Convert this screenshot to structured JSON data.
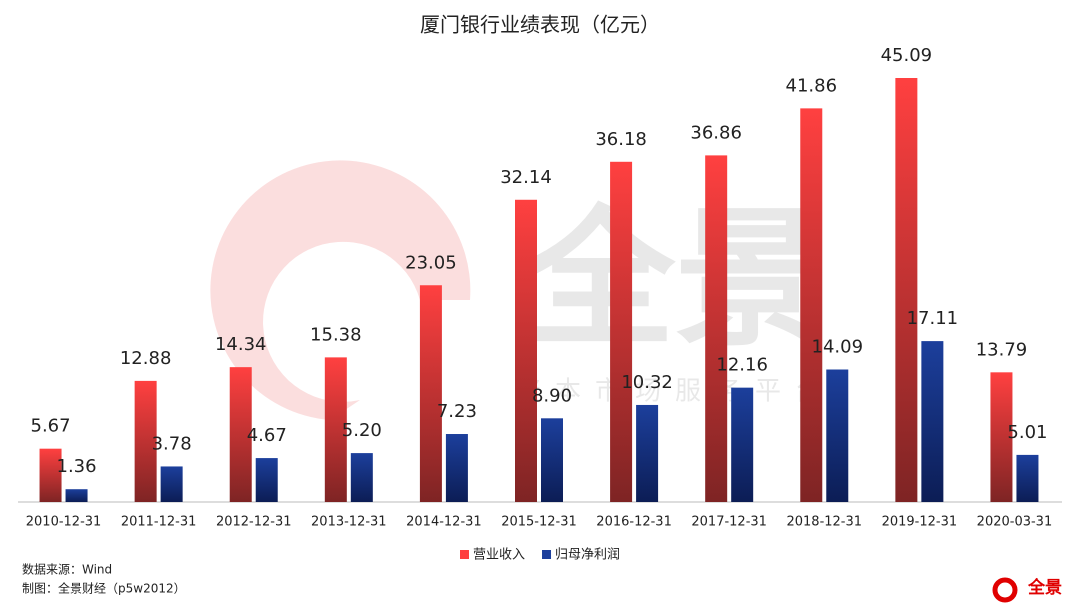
{
  "chart_data": {
    "type": "bar",
    "title": "厦门银行业绩表现（亿元）",
    "categories": [
      "2010-12-31",
      "2011-12-31",
      "2012-12-31",
      "2013-12-31",
      "2014-12-31",
      "2015-12-31",
      "2016-12-31",
      "2017-12-31",
      "2018-12-31",
      "2019-12-31",
      "2020-03-31"
    ],
    "series": [
      {
        "name": "营业收入",
        "color": "#ff4040",
        "gradient_end": "#7e2424",
        "values": [
          5.67,
          12.88,
          14.34,
          15.38,
          23.05,
          32.14,
          36.18,
          36.86,
          41.86,
          45.09,
          13.79
        ],
        "value_labels": [
          "5.67",
          "12.88",
          "14.34",
          "15.38",
          "23.05",
          "32.14",
          "36.18",
          "36.86",
          "41.86",
          "45.09",
          "13.79"
        ]
      },
      {
        "name": "归母净利润",
        "color": "#1c3f9c",
        "gradient_end": "#0c1d55",
        "values": [
          1.36,
          3.78,
          4.67,
          5.2,
          7.23,
          8.9,
          10.32,
          12.16,
          14.09,
          17.11,
          5.01
        ],
        "value_labels": [
          "1.36",
          "3.78",
          "4.67",
          "5.20",
          "7.23",
          "8.90",
          "10.32",
          "12.16",
          "14.09",
          "17.11",
          "5.01"
        ]
      }
    ],
    "legend": "bottom",
    "source": "数据来源：Wind",
    "credit": "制图：全景财经（p5w2012）",
    "watermark": {
      "title": "全景",
      "subtitle": "资本市场服务平台"
    },
    "logo_text": "全景"
  }
}
